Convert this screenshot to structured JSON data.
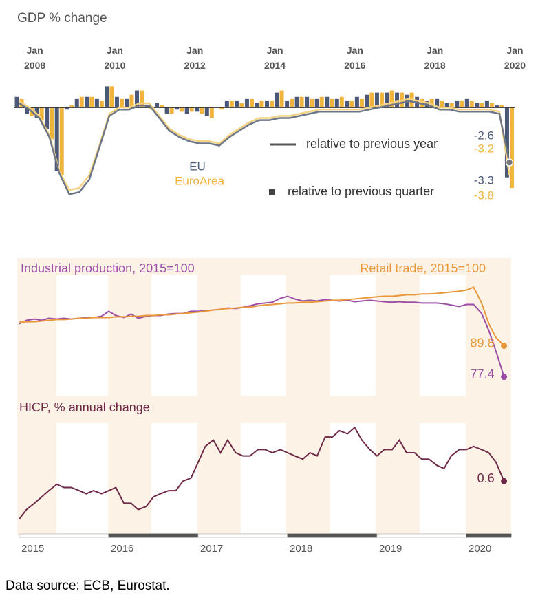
{
  "chart_data": [
    {
      "type": "bar",
      "title": "GDP % change",
      "x": [
        2007.75,
        2008,
        2008.25,
        2008.5,
        2008.75,
        2009,
        2009.25,
        2009.5,
        2009.75,
        2010,
        2010.25,
        2010.5,
        2010.75,
        2011,
        2011.25,
        2011.5,
        2011.75,
        2012,
        2012.25,
        2012.5,
        2012.75,
        2013,
        2013.25,
        2013.5,
        2013.75,
        2014,
        2014.25,
        2014.5,
        2014.75,
        2015,
        2015.25,
        2015.5,
        2015.75,
        2016,
        2016.25,
        2016.5,
        2016.75,
        2017,
        2017.25,
        2017.5,
        2017.75,
        2018,
        2018.25,
        2018.5,
        2018.75,
        2019,
        2019.25,
        2019.5,
        2019.75,
        2020
      ],
      "xlim": [
        2007.5,
        2020.25
      ],
      "xticks": [
        {
          "value": 2008,
          "label": "Jan 2008"
        },
        {
          "value": 2010,
          "label": "Jan 2010"
        },
        {
          "value": 2012,
          "label": "Jan 2012"
        },
        {
          "value": 2014,
          "label": "Jan 2014"
        },
        {
          "value": 2016,
          "label": "Jan 2016"
        },
        {
          "value": 2018,
          "label": "Jan 2018"
        },
        {
          "value": 2020,
          "label": "Jan 2020"
        }
      ],
      "ylim": [
        -5,
        1.5
      ],
      "line_label": "relative to previous year",
      "bar_label": "relative to previous quarter",
      "series": [
        {
          "name": "EU",
          "color": "#4b5877",
          "line_color": "#6d7686",
          "values": [
            0.5,
            -0.3,
            -0.5,
            -1.0,
            -3.0,
            -0.1,
            0.4,
            0.5,
            0.4,
            1.0,
            0.5,
            0.4,
            0.8,
            0.1,
            0.2,
            -0.3,
            -0.1,
            -0.3,
            -0.2,
            -0.4,
            0.0,
            0.3,
            0.3,
            0.4,
            0.2,
            0.3,
            0.7,
            0.3,
            0.5,
            0.5,
            0.4,
            0.5,
            0.4,
            0.3,
            0.5,
            0.6,
            0.7,
            0.7,
            0.7,
            0.6,
            0.5,
            0.3,
            0.4,
            0.2,
            0.3,
            0.4,
            0.2,
            0.3,
            0.1,
            -3.3
          ],
          "year_values": [
            0.2,
            -0.1,
            -0.5,
            -1.4,
            -3.1,
            -4.1,
            -4.0,
            -3.4,
            -1.9,
            -0.4,
            -0.1,
            -0.1,
            0.1,
            0.1,
            -0.5,
            -1.1,
            -1.4,
            -1.6,
            -1.7,
            -1.7,
            -1.8,
            -1.4,
            -1.1,
            -0.8,
            -0.6,
            -0.6,
            -0.5,
            -0.5,
            -0.4,
            -0.3,
            -0.2,
            -0.2,
            -0.2,
            -0.2,
            -0.2,
            -0.1,
            0.0,
            0.1,
            0.2,
            0.3,
            0.2,
            0.1,
            -0.1,
            -0.1,
            -0.2,
            -0.2,
            -0.2,
            -0.2,
            -0.3,
            -2.6
          ]
        },
        {
          "name": "EuroArea",
          "color": "#f0b43c",
          "line_color": "#f3d382",
          "values": [
            0.4,
            -0.4,
            -0.6,
            -1.5,
            -3.2,
            0.1,
            0.5,
            0.5,
            0.3,
            1.0,
            0.4,
            0.6,
            0.8,
            -0.1,
            0.1,
            -0.3,
            -0.2,
            -0.2,
            -0.3,
            -0.5,
            -0.1,
            0.3,
            0.2,
            0.4,
            0.3,
            0.3,
            0.8,
            0.4,
            0.5,
            0.4,
            0.5,
            0.4,
            0.5,
            0.3,
            0.4,
            0.7,
            0.7,
            0.8,
            0.7,
            0.7,
            0.4,
            0.4,
            0.3,
            0.2,
            0.3,
            0.3,
            0.2,
            0.2,
            0.1,
            -3.8
          ],
          "year_values": [
            0.3,
            0.0,
            -0.4,
            -1.3,
            -3.0,
            -3.9,
            -3.8,
            -3.2,
            -1.8,
            -0.3,
            0.0,
            0.0,
            0.2,
            0.2,
            -0.4,
            -1.0,
            -1.3,
            -1.5,
            -1.6,
            -1.6,
            -1.7,
            -1.3,
            -1.0,
            -0.7,
            -0.5,
            -0.5,
            -0.4,
            -0.4,
            -0.3,
            -0.2,
            -0.1,
            -0.1,
            -0.1,
            -0.1,
            -0.1,
            0.0,
            0.1,
            0.2,
            0.3,
            0.4,
            0.3,
            0.2,
            0.0,
            0.0,
            -0.1,
            -0.1,
            -0.1,
            -0.1,
            -0.2,
            -3.2
          ]
        }
      ]
    },
    {
      "type": "line",
      "x": [
        2015,
        2015.08,
        2015.17,
        2015.25,
        2015.33,
        2015.42,
        2015.5,
        2015.58,
        2015.67,
        2015.75,
        2015.83,
        2015.92,
        2016,
        2016.08,
        2016.17,
        2016.25,
        2016.33,
        2016.42,
        2016.5,
        2016.58,
        2016.67,
        2016.75,
        2016.83,
        2016.92,
        2017,
        2017.08,
        2017.17,
        2017.25,
        2017.33,
        2017.42,
        2017.5,
        2017.58,
        2017.67,
        2017.75,
        2017.83,
        2017.92,
        2018,
        2018.08,
        2018.17,
        2018.25,
        2018.33,
        2018.42,
        2018.5,
        2018.58,
        2018.67,
        2018.75,
        2018.83,
        2018.92,
        2019,
        2019.08,
        2019.17,
        2019.25,
        2019.33,
        2019.42,
        2019.5,
        2019.58,
        2019.67,
        2019.75,
        2019.83,
        2019.92,
        2020,
        2020.08,
        2020.17,
        2020.25,
        2020.33,
        2020.42
      ],
      "xlim": [
        2015,
        2020.5
      ],
      "ylim": [
        74,
        118
      ],
      "series": [
        {
          "name": "Industrial production,  2015=100",
          "color": "#9c4ea6",
          "values": [
            98.6,
            100.0,
            100.5,
            100.0,
            100.8,
            100.5,
            100.8,
            100.5,
            100.8,
            101.1,
            101.1,
            101.6,
            103.6,
            101.9,
            101.1,
            102.5,
            100.8,
            101.6,
            101.9,
            101.9,
            102.5,
            102.7,
            102.7,
            103.6,
            103.6,
            103.8,
            104.1,
            104.4,
            104.9,
            104.7,
            105.2,
            105.8,
            106.6,
            106.9,
            107.2,
            108.8,
            109.6,
            108.5,
            107.7,
            108.0,
            107.7,
            108.3,
            108.0,
            107.7,
            108.0,
            107.4,
            107.7,
            108.0,
            107.7,
            107.4,
            107.2,
            107.4,
            107.2,
            107.2,
            106.9,
            106.9,
            106.9,
            106.6,
            106.1,
            105.5,
            106.3,
            106.3,
            102.7,
            95.9,
            87.6,
            77.4
          ]
        },
        {
          "name": "Retail trade, 2015=100",
          "color": "#e8973a",
          "values": [
            99.2,
            99.4,
            99.4,
            99.7,
            100.0,
            100.3,
            100.3,
            100.5,
            100.8,
            100.8,
            101.1,
            101.1,
            101.1,
            101.4,
            101.4,
            101.6,
            101.6,
            101.9,
            101.9,
            102.2,
            102.2,
            102.5,
            102.7,
            103.0,
            103.3,
            103.6,
            104.1,
            104.4,
            104.7,
            104.9,
            105.2,
            105.2,
            105.8,
            106.1,
            106.3,
            106.6,
            106.9,
            106.9,
            107.2,
            107.2,
            107.4,
            107.7,
            108.0,
            108.0,
            108.3,
            108.5,
            108.8,
            109.1,
            109.4,
            109.6,
            109.6,
            109.9,
            110.2,
            110.2,
            110.5,
            110.5,
            110.7,
            111.0,
            111.3,
            111.6,
            112.1,
            113.2,
            106.9,
            98.6,
            93.1,
            89.8
          ]
        }
      ]
    },
    {
      "type": "line",
      "title": "HICP, % annual change",
      "color": "#6e2a48",
      "x": [
        2015,
        2015.08,
        2015.17,
        2015.25,
        2015.33,
        2015.42,
        2015.5,
        2015.58,
        2015.67,
        2015.75,
        2015.83,
        2015.92,
        2016,
        2016.08,
        2016.17,
        2016.25,
        2016.33,
        2016.42,
        2016.5,
        2016.58,
        2016.67,
        2016.75,
        2016.83,
        2016.92,
        2017,
        2017.08,
        2017.17,
        2017.25,
        2017.33,
        2017.42,
        2017.5,
        2017.58,
        2017.67,
        2017.75,
        2017.83,
        2017.92,
        2018,
        2018.08,
        2018.17,
        2018.25,
        2018.33,
        2018.42,
        2018.5,
        2018.58,
        2018.67,
        2018.75,
        2018.83,
        2018.92,
        2019,
        2019.08,
        2019.17,
        2019.25,
        2019.33,
        2019.42,
        2019.5,
        2019.58,
        2019.67,
        2019.75,
        2019.83,
        2019.92,
        2020,
        2020.08,
        2020.17,
        2020.25,
        2020.33,
        2020.42
      ],
      "xlim": [
        2015,
        2020.5
      ],
      "xticks": [
        2015,
        2016,
        2017,
        2018,
        2019,
        2020
      ],
      "ylim": [
        -1.05,
        3.2
      ],
      "values": [
        -0.6,
        -0.3,
        -0.1,
        0.1,
        0.3,
        0.5,
        0.4,
        0.4,
        0.3,
        0.2,
        0.3,
        0.2,
        0.3,
        0.4,
        -0.1,
        -0.1,
        -0.3,
        -0.2,
        0.1,
        0.2,
        0.3,
        0.3,
        0.6,
        0.7,
        1.2,
        1.7,
        1.9,
        1.5,
        1.9,
        1.5,
        1.4,
        1.4,
        1.6,
        1.6,
        1.5,
        1.6,
        1.5,
        1.4,
        1.3,
        1.5,
        1.4,
        2.0,
        2.0,
        2.2,
        2.1,
        2.3,
        1.9,
        1.6,
        1.4,
        1.6,
        1.6,
        1.9,
        1.5,
        1.5,
        1.3,
        1.3,
        1.1,
        1.0,
        1.4,
        1.6,
        1.6,
        1.7,
        1.6,
        1.5,
        1.2,
        0.6
      ]
    }
  ],
  "source": "Data source: ECB, Eurostat."
}
